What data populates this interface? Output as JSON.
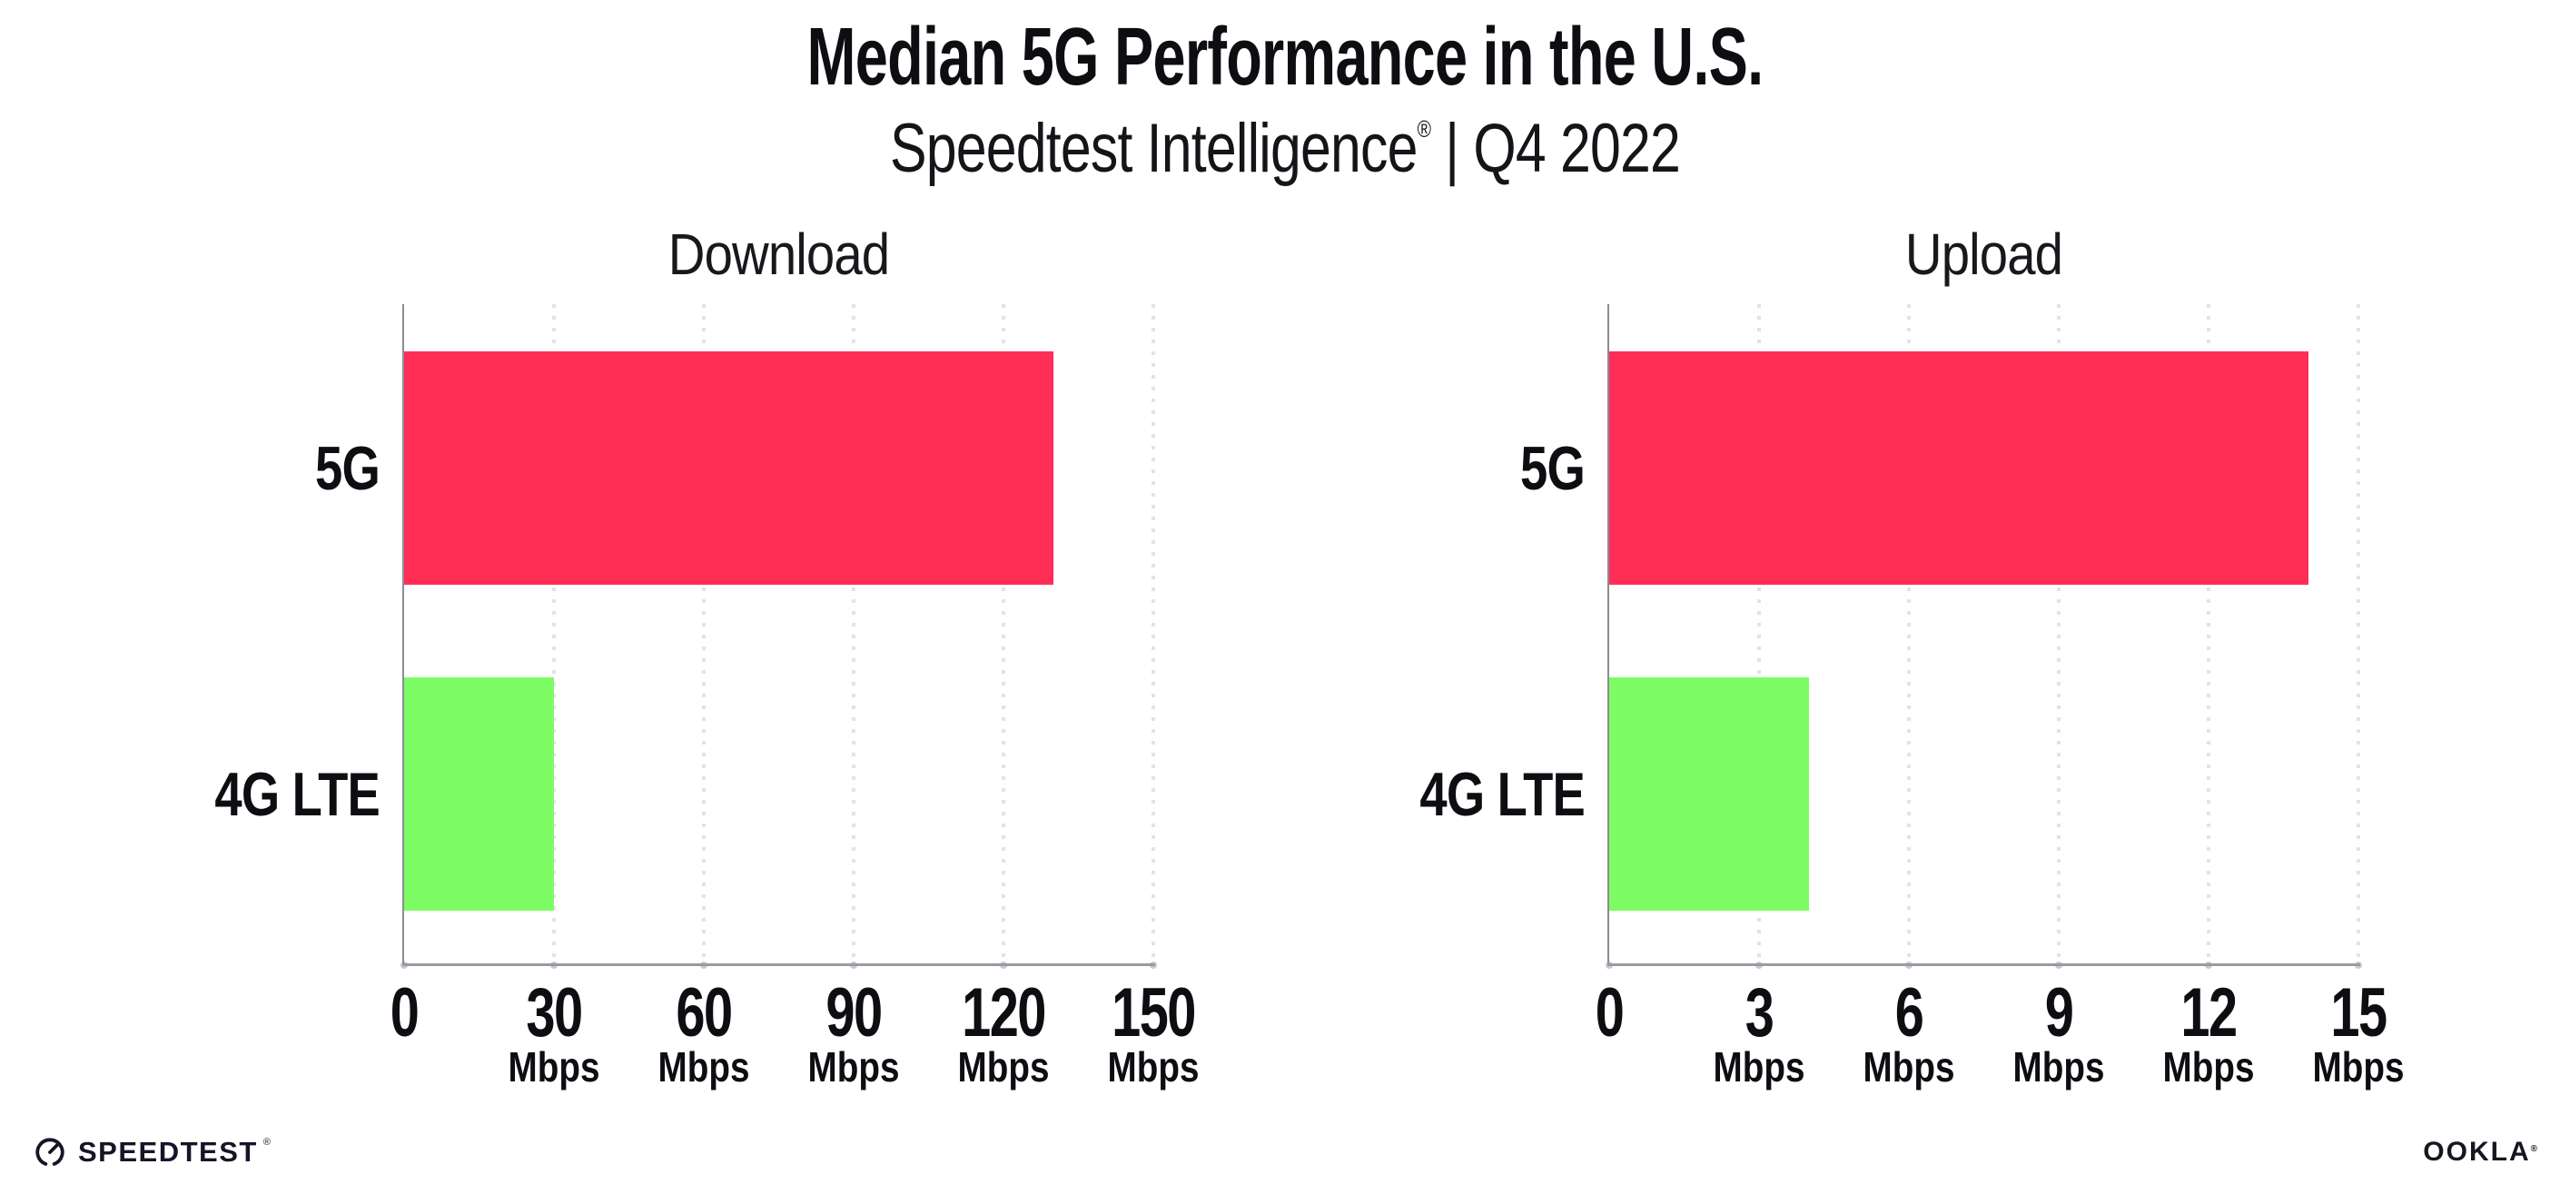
{
  "header": {
    "title": "Median 5G Performance in the U.S.",
    "brand": "Speedtest Intelligence",
    "registered": "®",
    "rest": " | Q4 2022"
  },
  "chart_data": [
    {
      "type": "bar",
      "orientation": "horizontal",
      "title": "Download",
      "categories": [
        "5G",
        "4G LTE"
      ],
      "values": [
        130,
        30
      ],
      "unit": "Mbps",
      "xlabel": "",
      "ylabel": "",
      "xlim": [
        0,
        150
      ],
      "xticks": [
        0,
        30,
        60,
        90,
        120,
        150
      ],
      "bar_colors": [
        "#FF2E56",
        "#7DFC64"
      ],
      "grid": "dotted-vertical",
      "legend": "none"
    },
    {
      "type": "bar",
      "orientation": "horizontal",
      "title": "Upload",
      "categories": [
        "5G",
        "4G LTE"
      ],
      "values": [
        14,
        4
      ],
      "unit": "Mbps",
      "xlabel": "",
      "ylabel": "",
      "xlim": [
        0,
        15
      ],
      "xticks": [
        0,
        3,
        6,
        9,
        12,
        15
      ],
      "bar_colors": [
        "#FF2E56",
        "#7DFC64"
      ],
      "grid": "dotted-vertical",
      "legend": "none"
    }
  ],
  "footer": {
    "speedtest": "SPEEDTEST",
    "speedtest_reg": "®",
    "ookla": "OOKLA",
    "ookla_reg": "®"
  },
  "colors": {
    "bar_5g": "#FF2E56",
    "bar_4g": "#7DFC64",
    "axis": "#9a9aa0",
    "gridline_dots": "#e2e2ed",
    "text": "#0d0d12"
  }
}
